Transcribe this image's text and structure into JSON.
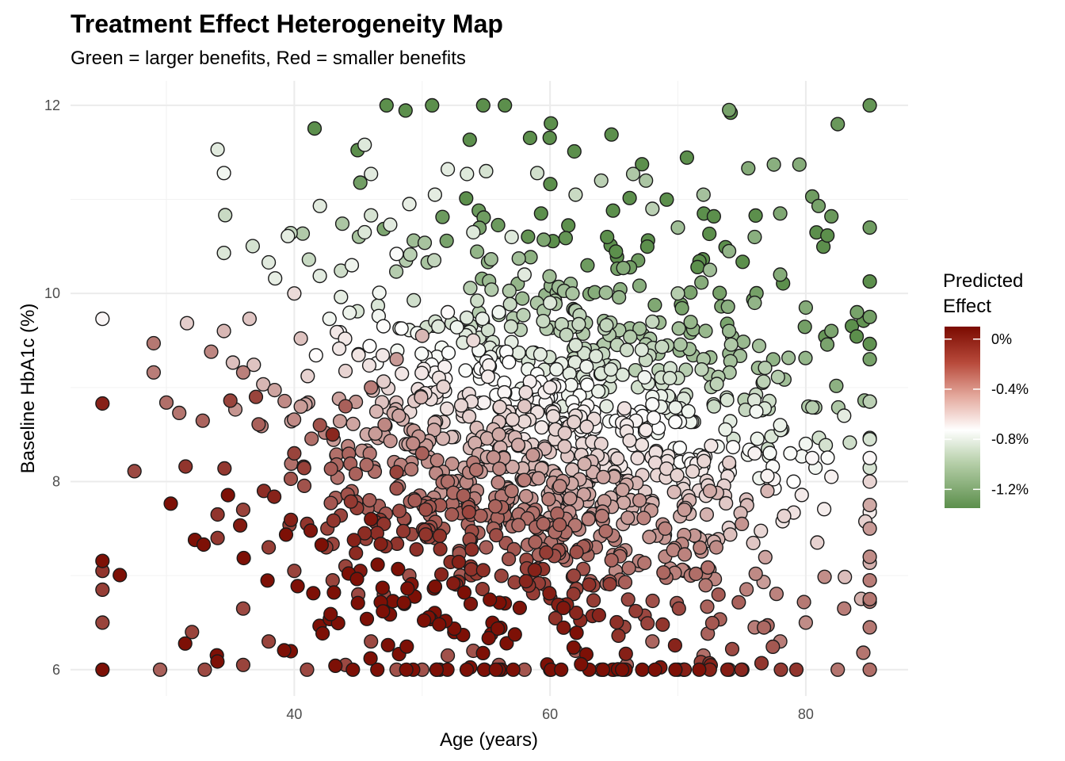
{
  "chart_data": {
    "type": "scatter",
    "title": "Treatment Effect Heterogeneity Map",
    "subtitle": "Green = larger benefits, Red = smaller benefits",
    "xlabel": "Age (years)",
    "ylabel": "Baseline HbA1c (%)",
    "xlim": [
      22.5,
      88
    ],
    "ylim": [
      5.72,
      12.26
    ],
    "x_ticks": [
      40,
      60,
      80
    ],
    "y_ticks": [
      6,
      8,
      10,
      12
    ],
    "x_tick_labels": [
      "40",
      "60",
      "80"
    ],
    "y_tick_labels": [
      "6",
      "8",
      "10",
      "12"
    ],
    "grid": true,
    "legend": {
      "title": [
        "Predicted",
        "Effect"
      ],
      "placement": "right",
      "type": "colorbar",
      "range": [
        -1.35,
        0.1
      ],
      "breaks": [
        0,
        -0.4,
        -0.8,
        -1.2
      ],
      "break_labels": [
        "0%",
        "-0.4%",
        "-0.8%",
        "-1.2%"
      ],
      "colors": {
        "high": "#7a0a00",
        "mid": "#ffffff",
        "low": "#5c8f4c",
        "midpoint": -0.75
      }
    },
    "point_style": {
      "stroke": "#1a1a1a"
    },
    "sample_points": [
      [
        25,
        9.73,
        -0.72
      ],
      [
        25,
        8.83,
        0.02
      ],
      [
        25,
        7.05,
        -0.05
      ],
      [
        25,
        6.85,
        -0.08
      ],
      [
        25,
        6.5,
        -0.1
      ],
      [
        27.5,
        8.11,
        -0.12
      ],
      [
        29,
        9.47,
        -0.28
      ],
      [
        29,
        9.16,
        -0.3
      ],
      [
        29.5,
        6.0,
        -0.2
      ],
      [
        30,
        8.84,
        -0.25
      ],
      [
        31,
        8.73,
        -0.27
      ],
      [
        31.5,
        8.16,
        -0.05
      ],
      [
        32,
        6.4,
        -0.1
      ],
      [
        34,
        11.53,
        -0.86
      ],
      [
        34.5,
        11.28,
        -0.8
      ],
      [
        34.5,
        10.43,
        -0.88
      ],
      [
        34.5,
        9.6,
        -0.5
      ],
      [
        33.5,
        9.38,
        -0.33
      ],
      [
        35,
        8.86,
        -0.1
      ],
      [
        34,
        7.65,
        -0.05
      ],
      [
        34,
        7.4,
        -0.06
      ],
      [
        36,
        9.16,
        -0.31
      ],
      [
        36.5,
        9.73,
        -0.55
      ],
      [
        37,
        8.9,
        -0.1
      ],
      [
        36,
        6.65,
        -0.12
      ],
      [
        38,
        10.33,
        -0.86
      ],
      [
        38.5,
        10.16,
        -0.84
      ],
      [
        39.5,
        10.61,
        -0.85
      ],
      [
        40,
        10.0,
        -0.62
      ],
      [
        42,
        10.93,
        -0.86
      ],
      [
        44.5,
        10.3,
        -0.81
      ],
      [
        45.5,
        11.58,
        -0.87
      ],
      [
        46,
        11.27,
        -0.86
      ],
      [
        45.5,
        10.65,
        -0.88
      ],
      [
        46,
        10.83,
        -0.9
      ],
      [
        47.5,
        10.73,
        -0.86
      ],
      [
        48,
        10.42,
        -0.77
      ],
      [
        52,
        11.32,
        -0.85
      ],
      [
        53.5,
        11.27,
        -0.87
      ],
      [
        55,
        11.3,
        -0.9
      ],
      [
        59,
        11.28,
        -0.92
      ],
      [
        57,
        10.6,
        -0.87
      ],
      [
        54,
        10.65,
        -0.87
      ],
      [
        51,
        11.05,
        -0.85
      ],
      [
        49,
        10.95,
        -0.84
      ],
      [
        62,
        11.05,
        -0.95
      ],
      [
        64,
        11.2,
        -1.0
      ],
      [
        66.5,
        11.27,
        -1.05
      ],
      [
        67.5,
        11.2,
        -1.06
      ],
      [
        68,
        10.9,
        -1.0
      ],
      [
        70,
        10.7,
        -1.1
      ],
      [
        72,
        11.05,
        -1.08
      ],
      [
        74,
        11.95,
        -1.25
      ],
      [
        75.5,
        11.33,
        -1.2
      ],
      [
        77.5,
        11.37,
        -1.18
      ],
      [
        79.5,
        11.37,
        -1.2
      ],
      [
        80.5,
        11.03,
        -1.28
      ],
      [
        82.5,
        11.8,
        -1.3
      ],
      [
        85,
        12.0,
        -1.32
      ],
      [
        85,
        10.7,
        -1.28
      ],
      [
        81,
        10.93,
        -1.25
      ],
      [
        82,
        10.82,
        -1.3
      ],
      [
        78,
        10.85,
        -1.22
      ],
      [
        76,
        10.6,
        -1.18
      ],
      [
        74,
        10.45,
        -1.15
      ],
      [
        72.5,
        10.25,
        -1.1
      ],
      [
        70,
        10.0,
        -1.02
      ],
      [
        68,
        9.7,
        -0.96
      ],
      [
        66,
        9.4,
        -0.93
      ],
      [
        64,
        9.15,
        -0.88
      ],
      [
        62,
        9.45,
        -0.89
      ],
      [
        60,
        9.9,
        -0.88
      ],
      [
        58,
        10.2,
        -0.86
      ],
      [
        56,
        9.8,
        -0.8
      ],
      [
        54,
        9.5,
        -0.62
      ],
      [
        52,
        9.8,
        -0.73
      ],
      [
        50,
        9.55,
        -0.5
      ],
      [
        48,
        9.3,
        -0.4
      ],
      [
        46,
        9.0,
        -0.3
      ],
      [
        44,
        8.8,
        -0.2
      ],
      [
        42,
        8.6,
        -0.15
      ],
      [
        40,
        8.3,
        -0.1
      ],
      [
        43,
        8.5,
        0.0
      ],
      [
        45.5,
        7.45,
        -0.02
      ],
      [
        46,
        7.6,
        0.05
      ],
      [
        41,
        7.55,
        -0.05
      ],
      [
        42.5,
        7.3,
        -0.08
      ],
      [
        44,
        7.1,
        -0.1
      ],
      [
        47,
        7.55,
        -0.05
      ],
      [
        48,
        8.1,
        -0.1
      ],
      [
        50,
        8.3,
        -0.2
      ],
      [
        52,
        8.0,
        -0.25
      ],
      [
        54,
        8.2,
        -0.3
      ],
      [
        56,
        8.5,
        -0.45
      ],
      [
        58,
        8.8,
        -0.55
      ],
      [
        60,
        9.0,
        -0.67
      ],
      [
        62,
        8.7,
        -0.62
      ],
      [
        64,
        8.4,
        -0.6
      ],
      [
        66,
        8.6,
        -0.68
      ],
      [
        68,
        8.9,
        -0.8
      ],
      [
        70,
        9.1,
        -0.95
      ],
      [
        72,
        9.3,
        -1.05
      ],
      [
        74,
        9.6,
        -1.12
      ],
      [
        76,
        9.9,
        -1.15
      ],
      [
        78,
        10.2,
        -1.2
      ],
      [
        80,
        9.85,
        -1.2
      ],
      [
        82,
        9.6,
        -1.23
      ],
      [
        84,
        9.8,
        -1.25
      ],
      [
        85,
        9.75,
        -1.27
      ],
      [
        85,
        9.3,
        -1.25
      ],
      [
        85,
        8.85,
        -1.0
      ],
      [
        85,
        8.45,
        -0.9
      ],
      [
        85,
        8.25,
        -0.72
      ],
      [
        85,
        8.0,
        -0.6
      ],
      [
        85,
        7.75,
        -0.45
      ],
      [
        85,
        7.5,
        -0.4
      ],
      [
        85,
        7.2,
        -0.35
      ],
      [
        85,
        6.95,
        -0.3
      ],
      [
        85,
        6.75,
        -0.28
      ],
      [
        85,
        6.45,
        -0.28
      ],
      [
        85,
        6.0,
        -0.25
      ],
      [
        84.5,
        6.18,
        -0.27
      ],
      [
        83,
        6.65,
        -0.3
      ],
      [
        82.5,
        6.0,
        -0.27
      ],
      [
        80,
        6.5,
        -0.35
      ],
      [
        78,
        6.3,
        -0.3
      ],
      [
        76,
        6.45,
        -0.3
      ],
      [
        74,
        6.0,
        -0.28
      ],
      [
        72,
        6.15,
        -0.25
      ],
      [
        70,
        6.0,
        -0.2
      ],
      [
        68,
        6.3,
        -0.22
      ],
      [
        66,
        6.05,
        -0.2
      ],
      [
        64,
        6.0,
        -0.2
      ],
      [
        62,
        6.2,
        -0.18
      ],
      [
        60,
        6.0,
        -0.17
      ],
      [
        58,
        6.0,
        -0.16
      ],
      [
        56,
        6.05,
        -0.16
      ],
      [
        54,
        6.2,
        -0.15
      ],
      [
        52,
        6.15,
        -0.15
      ],
      [
        50,
        6.0,
        -0.15
      ],
      [
        48,
        6.0,
        -0.15
      ],
      [
        46,
        6.3,
        -0.12
      ],
      [
        44,
        6.05,
        -0.12
      ],
      [
        41,
        6.0,
        -0.12
      ],
      [
        38,
        6.3,
        -0.1
      ],
      [
        36,
        6.05,
        -0.1
      ],
      [
        33,
        6.0,
        -0.12
      ],
      [
        70.5,
        7.7,
        -0.4
      ],
      [
        72.5,
        7.9,
        -0.45
      ],
      [
        74,
        8.2,
        -0.58
      ],
      [
        76,
        8.3,
        -0.7
      ],
      [
        78,
        8.6,
        -0.82
      ],
      [
        80,
        8.4,
        -0.8
      ],
      [
        82,
        8.05,
        -0.7
      ],
      [
        83,
        8.7,
        -0.85
      ],
      [
        80.5,
        8.25,
        -0.72
      ],
      [
        77,
        7.9,
        -0.5
      ],
      [
        75,
        7.55,
        -0.38
      ],
      [
        73,
        7.3,
        -0.35
      ],
      [
        71,
        7.0,
        -0.3
      ],
      [
        69,
        7.5,
        -0.32
      ],
      [
        67,
        7.8,
        -0.38
      ],
      [
        65,
        8.05,
        -0.45
      ],
      [
        63,
        7.6,
        -0.32
      ],
      [
        61,
        7.2,
        -0.25
      ],
      [
        59,
        7.5,
        -0.25
      ],
      [
        57,
        7.9,
        -0.28
      ],
      [
        55,
        7.3,
        -0.2
      ],
      [
        53,
        7.0,
        -0.18
      ],
      [
        51,
        7.4,
        -0.15
      ],
      [
        49,
        7.0,
        -0.15
      ],
      [
        47,
        6.8,
        -0.12
      ],
      [
        45,
        6.8,
        -0.12
      ],
      [
        43,
        6.95,
        -0.1
      ],
      [
        40,
        7.05,
        -0.1
      ],
      [
        38,
        7.3,
        -0.08
      ],
      [
        36,
        7.7,
        -0.1
      ]
    ]
  }
}
